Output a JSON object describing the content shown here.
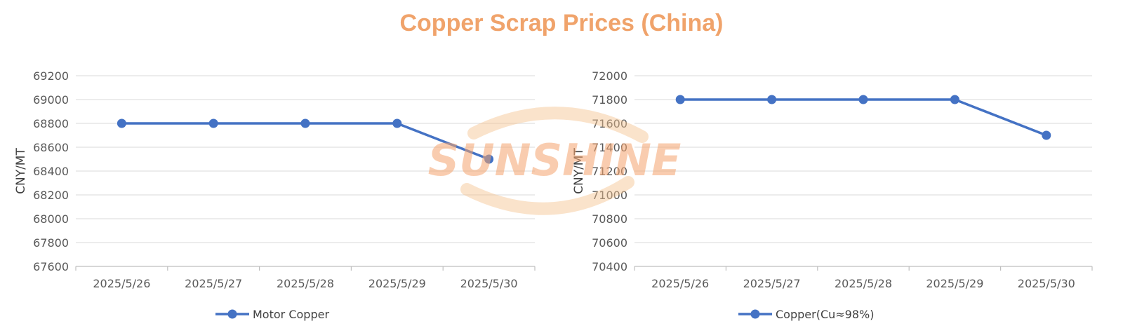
{
  "title": "Copper Scrap Prices (China)",
  "watermark": {
    "text": "SUNSHINE",
    "color": "#F5A46E"
  },
  "colors": {
    "line": "#4472C4",
    "grid": "#D9D9D9",
    "axis": "#BFBFBF",
    "title": "#F0A36B"
  },
  "chart_data": [
    {
      "type": "line",
      "title": "",
      "xlabel": "",
      "ylabel": "CNY/MT",
      "categories": [
        "2025/5/26",
        "2025/5/27",
        "2025/5/28",
        "2025/5/29",
        "2025/5/30"
      ],
      "series": [
        {
          "name": "Motor Copper",
          "values": [
            68800,
            68800,
            68800,
            68800,
            68500
          ]
        }
      ],
      "ylim": [
        67600,
        69200
      ],
      "yticks": [
        67600,
        67800,
        68000,
        68200,
        68400,
        68600,
        68800,
        69000,
        69200
      ],
      "grid": true,
      "legend": "bottom"
    },
    {
      "type": "line",
      "title": "",
      "xlabel": "",
      "ylabel": "CNY/MT",
      "categories": [
        "2025/5/26",
        "2025/5/27",
        "2025/5/28",
        "2025/5/29",
        "2025/5/30"
      ],
      "series": [
        {
          "name": "Copper(Cu≈98%)",
          "values": [
            71800,
            71800,
            71800,
            71800,
            71500
          ]
        }
      ],
      "ylim": [
        70400,
        72000
      ],
      "yticks": [
        70400,
        70600,
        70800,
        71000,
        71200,
        71400,
        71600,
        71800,
        72000
      ],
      "grid": true,
      "legend": "bottom"
    }
  ]
}
